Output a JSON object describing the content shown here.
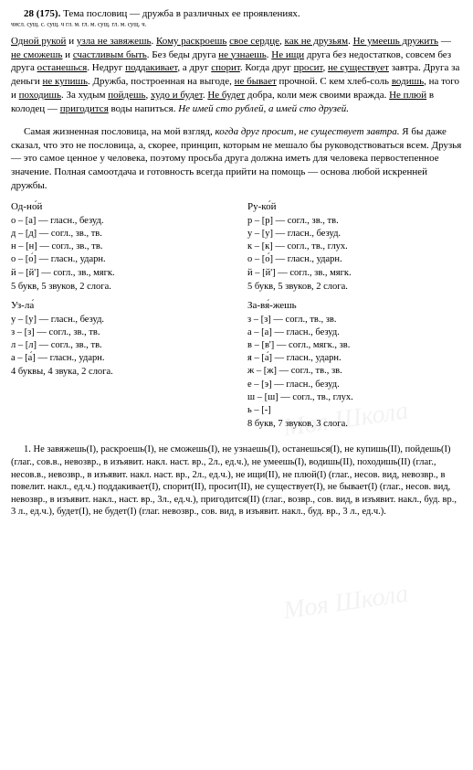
{
  "task": {
    "num": "28 (175).",
    "theme": "Тема пословиц — дружба в различных ее проявлениях."
  },
  "para1_html": "<span class='u'>Одной рукой</span> и <span class='u'>узла не завяжешь</span>. <span class='u'>Кому раскроешь</span> <span class='u'>свое сердце</span>, <span class='u'>как не друзьям</span>. <span class='u'>Не умеешь дружить</span> — <span class='u'>не сможешь</span> и <span class='u'>счастливым быть</span>. Без беды друга <span class='u'>не узнаешь</span>. <span class='u'>Не ищи</span> друга без недостатков, совсем без друга <span class='u'>останешься</span>. Недруг <span class='u'>поддакивает</span>, а друг <span class='u'>спорит</span>. Когда друг <span class='u'>просит</span>, <span class='u'>не существует</span> завтра. Друга за деньги <span class='u'>не купишь</span>. Дружба, построенная на выгоде, <span class='u'>не бывает</span> прочной. С кем хлеб-соль <span class='u'>водишь</span>, на того и <span class='u'>походишь</span>. За худым <span class='u'>пойдешь</span>, <span class='u'>худо и будет</span>. <span class='u'>Не будет</span> добра, коли меж своими вражда. <span class='u'>Не плюй</span> в колодец — <span class='u'>пригодится</span> воды напиться. <span class='i'>Не имей сто рублей, а имей сто друзей.</span>",
  "annot": "числ.   сущ.  с. сущ.   ч    гл.       м. гл.        м.   сущ.   гл.   м. сущ.     ч.",
  "annot2": "сущ.             гл.           гл. в н.ф.      ч       гл.           прил.   гл. в н.ф.",
  "para2_html": "Самая жизненная пословица, на мой взгляд, <span class='i'>когда друг просит, не существует завтра.</span> Я бы даже сказал, что это не пословица, а, скорее, принцип, которым не мешало бы руководствоваться всем. Друзья — это самое ценное у человека, поэтому просьба друга должна иметь для человека первостепенное значение. Полная самоотдача и готовность всегда прийти на помощь — основа любой искренней дружбы.",
  "phon": {
    "w1": {
      "title": "Од-но́й",
      "lines": [
        "о – [а] — гласн., безуд.",
        "д – [д] — согл., зв., тв.",
        "н – [н] — согл., зв., тв.",
        "о – [о́] — гласн., ударн.",
        "й – [й'] — согл., зв., мягк."
      ],
      "sum": "5 букв, 5 звуков, 2 слога."
    },
    "w2": {
      "title": "Ру-ко́й",
      "lines": [
        "р – [р] — согл., зв., тв.",
        "у – [у] — гласн., безуд.",
        "к – [к] — согл., тв., глух.",
        "о – [о́] — гласн., ударн.",
        "й – [й'] — согл., зв., мягк."
      ],
      "sum": "5 букв, 5 звуков, 2 слога."
    },
    "w3": {
      "title": "Уз-ла́",
      "lines": [
        "у – [у] — гласн., безуд.",
        "з – [з] — согл., зв., тв.",
        "л – [л] — согл., зв., тв.",
        "а – [а́] — гласн., ударн."
      ],
      "sum": "4 буквы, 4 звука, 2 слога."
    },
    "w4": {
      "title": "За-вя́-жешь",
      "lines": [
        "з – [з] — согл., тв., зв.",
        "а – [а] — гласн., безуд.",
        "в – [в'] — согл., мягк., зв.",
        "я – [а́] — гласн., ударн.",
        "ж – [ж] — согл., тв., зв.",
        "е – [э] — гласн., безуд.",
        "ш – [ш] — согл., тв., глух.",
        "ь – [-]"
      ],
      "sum": "8 букв, 7 звуков, 3 слога."
    }
  },
  "para3": "1. Не завяжешь(I), раскроешь(I), не сможешь(I), не узнаешь(I), останешься(I), не купишь(II), пойдешь(I) (глаг., сов.в., невозвр., в изъявит. накл. наст. вр., 2л., ед.ч.), не умеешь(I), водишь(II), походишь(II) (глаг., несов.в., невозвр., в изъявит. накл. наст. вр., 2л., ед.ч.), не ищи(II), не плюй(I) (глаг., несов. вид, невозвр., в повелит. накл., ед.ч.) поддакивает(I), спорит(II), просит(II), не существует(I), не бывает(I) (глаг., несов. вид, невозвр., в изъявит. накл., наст. вр., 3л., ед.ч.), пригодится(II) (глаг., возвр., сов. вид, в изъявит. накл., буд. вр., 3 л., ед.ч.), будет(I), не будет(I) (глаг. невозвр., сов. вид, в изъявит. накл., буд. вр., 3 л., ед.ч.)."
}
